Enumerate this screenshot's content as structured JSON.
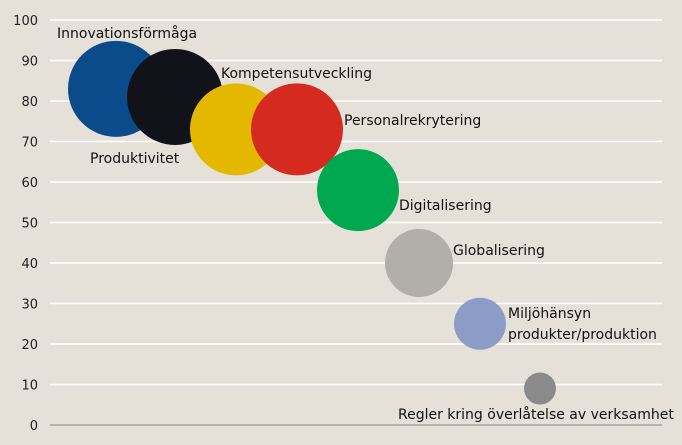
{
  "chart_data": {
    "type": "bubble",
    "title": "",
    "xlabel": "",
    "ylabel": "",
    "ylim": [
      0,
      100
    ],
    "yticks": [
      0,
      10,
      20,
      30,
      40,
      50,
      60,
      70,
      80,
      90,
      100
    ],
    "grid": true,
    "points": [
      {
        "label": "Innovationsförmåga",
        "x": 1,
        "y": 83,
        "size": 48,
        "color": "#0b4a8b"
      },
      {
        "label": "Kompetensutveckling",
        "x": 2,
        "y": 81,
        "size": 48,
        "color": "#12131a"
      },
      {
        "label": "Produktivitet",
        "x": 3,
        "y": 73,
        "size": 46,
        "color": "#e5b800"
      },
      {
        "label": "Personalrekrytering",
        "x": 4,
        "y": 73,
        "size": 46,
        "color": "#d42a1f"
      },
      {
        "label": "Digitalisering",
        "x": 5,
        "y": 58,
        "size": 41,
        "color": "#00a84f"
      },
      {
        "label": "Globalisering",
        "x": 6,
        "y": 40,
        "size": 34,
        "color": "#b2aea8"
      },
      {
        "label": "Miljöhänsyn produkter/produktion",
        "x": 7,
        "y": 25,
        "size": 26,
        "color": "#8b9cc6"
      },
      {
        "label": "Regler kring överlåtelse av verksamhet",
        "x": 8,
        "y": 9,
        "size": 16,
        "color": "#8a8a8a"
      }
    ]
  }
}
